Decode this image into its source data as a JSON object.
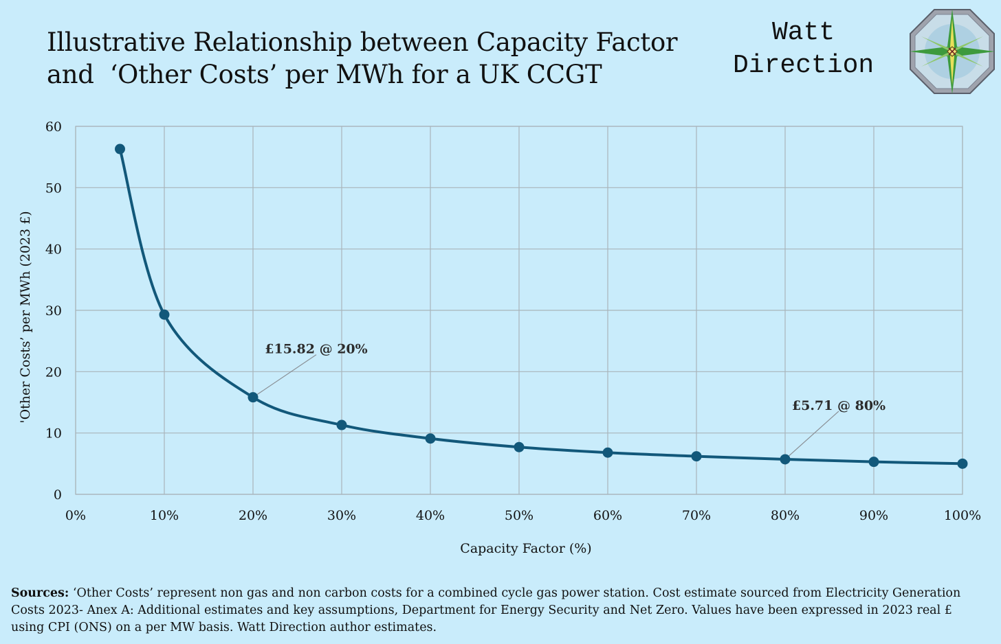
{
  "header": {
    "title_line1": "Illustrative Relationship between Capacity Factor",
    "title_line2": "and  ‘Other Costs’ per MWh for a UK CCGT",
    "brand_line1": "Watt",
    "brand_line2": "Direction"
  },
  "chart_data": {
    "type": "line",
    "title": "Illustrative Relationship between Capacity Factor and ‘Other Costs’ per MWh for a UK CCGT",
    "xlabel": "Capacity Factor (%)",
    "ylabel": "'Other Costs’ per MWh (2023 £)",
    "xlim": [
      0,
      100
    ],
    "ylim": [
      0,
      60
    ],
    "x_ticks": [
      0,
      10,
      20,
      30,
      40,
      50,
      60,
      70,
      80,
      90,
      100
    ],
    "x_tick_labels": [
      "0%",
      "10%",
      "20%",
      "30%",
      "40%",
      "50%",
      "60%",
      "70%",
      "80%",
      "90%",
      "100%"
    ],
    "y_ticks": [
      0,
      10,
      20,
      30,
      40,
      50,
      60
    ],
    "y_tick_labels": [
      "0",
      "10",
      "20",
      "30",
      "40",
      "50",
      "60"
    ],
    "grid": true,
    "series": [
      {
        "name": "Other Costs per MWh",
        "color": "#12587a",
        "x": [
          5,
          10,
          20,
          30,
          40,
          50,
          60,
          70,
          80,
          90,
          100
        ],
        "y": [
          56.3,
          29.3,
          15.82,
          11.3,
          9.1,
          7.7,
          6.8,
          6.2,
          5.71,
          5.3,
          5.0
        ]
      }
    ],
    "annotations": [
      {
        "text": "£15.82 @ 20%",
        "x": 20,
        "y": 15.82
      },
      {
        "text": "£5.71 @ 80%",
        "x": 80,
        "y": 5.71
      }
    ]
  },
  "sources": {
    "label": "Sources:",
    "text": " ‘Other Costs’ represent non gas and non carbon costs for a combined cycle gas power station. Cost estimate sourced from Electricity Generation Costs 2023- Anex A: Additional estimates and key assumptions, Department for Energy Security and Net Zero. Values have been expressed in 2023 real £ using CPI (ONS) on a per MW basis. Watt Direction author estimates."
  },
  "colors": {
    "background": "#c9ecfb",
    "line": "#12587a",
    "grid": "#a9b4ba"
  }
}
